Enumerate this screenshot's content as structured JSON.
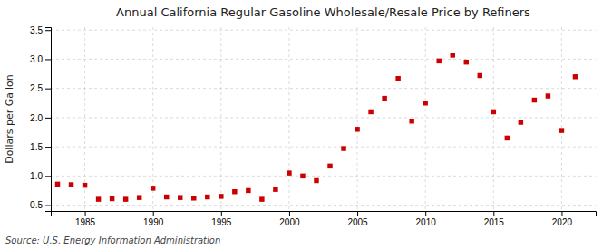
{
  "chart_data": {
    "type": "scatter",
    "title": "Annual California Regular Gasoline Wholesale/Resale Price by Refiners",
    "ylabel": "Dollars per Gallon",
    "source": "Source: U.S. Energy Information Administration",
    "x": [
      1983,
      1984,
      1985,
      1986,
      1987,
      1988,
      1989,
      1990,
      1991,
      1992,
      1993,
      1994,
      1995,
      1996,
      1997,
      1998,
      1999,
      2000,
      2001,
      2002,
      2003,
      2004,
      2005,
      2006,
      2007,
      2008,
      2009,
      2010,
      2011,
      2012,
      2013,
      2014,
      2015,
      2016,
      2017,
      2018,
      2019,
      2020,
      2021
    ],
    "values": [
      0.86,
      0.85,
      0.84,
      0.6,
      0.61,
      0.6,
      0.63,
      0.79,
      0.64,
      0.63,
      0.62,
      0.64,
      0.65,
      0.73,
      0.75,
      0.6,
      0.77,
      1.05,
      1.0,
      0.92,
      1.17,
      1.47,
      1.8,
      2.1,
      2.33,
      2.67,
      1.94,
      2.25,
      2.97,
      3.07,
      2.95,
      2.72,
      2.1,
      1.65,
      1.92,
      2.3,
      2.37,
      1.78,
      2.7
    ],
    "color": "#cc0000",
    "marker": "square",
    "xlim": [
      1982.5,
      2022.5
    ],
    "ylim": [
      0.4,
      3.55
    ],
    "xticks": [
      1985,
      1990,
      1995,
      2000,
      2005,
      2010,
      2015,
      2020
    ],
    "yticks": [
      0.5,
      {
        "value": 1.0,
        "label": "1.0"
      },
      1.5,
      {
        "value": 2.0,
        "label": "2.0"
      },
      2.5,
      {
        "value": 3.0,
        "label": "3.0"
      },
      3.5
    ],
    "grid": true
  }
}
